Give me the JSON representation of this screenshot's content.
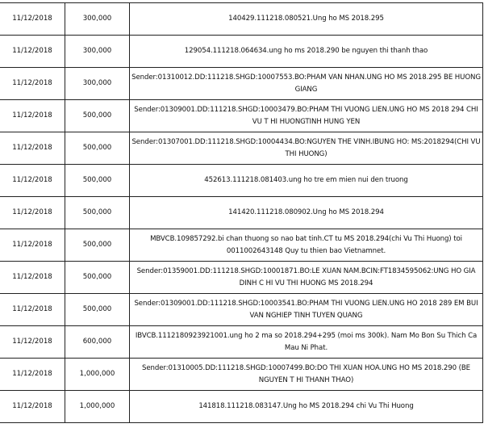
{
  "rows": [
    {
      "date": "11/12/2018",
      "amount": "300,000",
      "content": "140429.111218.080521.Ung ho MS 2018.295"
    },
    {
      "date": "11/12/2018",
      "amount": "300,000",
      "content": "129054.111218.064634.ung ho ms 2018.290 be nguyen thi thanh thao"
    },
    {
      "date": "11/12/2018",
      "amount": "300,000",
      "content": "Sender:01310012.DD:111218.SHGD:10007553.BO:PHAM VAN NHAN.UNG HO MS 2018.295 BE HUONG GIANG"
    },
    {
      "date": "11/12/2018",
      "amount": "500,000",
      "content": "Sender:01309001.DD:111218.SHGD:10003479.BO:PHAM THI VUONG LIEN.UNG HO MS 2018 294 CHI VU T HI HUONGTINH HUNG YEN"
    },
    {
      "date": "11/12/2018",
      "amount": "500,000",
      "content": "Sender:01307001.DD:111218.SHGD:10004434.BO:NGUYEN THE VINH.IBUNG HO: MS:2018294(CHI VU THI HUONG)"
    },
    {
      "date": "11/12/2018",
      "amount": "500,000",
      "content": "452613.111218.081403.ung ho tre em mien nui den truong"
    },
    {
      "date": "11/12/2018",
      "amount": "500,000",
      "content": "141420.111218.080902.Ung ho MS 2018.294"
    },
    {
      "date": "11/12/2018",
      "amount": "500,000",
      "content": "MBVCB.109857292.bi chan thuong so nao bat tinh.CT tu MS 2018.294(chi Vu Thi Huong) toi 0011002643148 Quy tu thien bao Vietnamnet."
    },
    {
      "date": "11/12/2018",
      "amount": "500,000",
      "content": "Sender:01359001.DD:111218.SHGD:10001871.BO:LE XUAN NAM.BCIN:FT1834595062:UNG HO GIA DINH C HI VU THI HUONG MS 2018.294"
    },
    {
      "date": "11/12/2018",
      "amount": "500,000",
      "content": "Sender:01309001.DD:111218.SHGD:10003541.BO:PHAM THI VUONG LIEN.UNG HO 2018 289 EM BUI VAN NGHIEP TINH TUYEN QUANG"
    },
    {
      "date": "11/12/2018",
      "amount": "600,000",
      "content": "IBVCB.1112180923921001.ung ho 2 ma so 2018.294+295 (moi ms 300k). Nam Mo Bon Su Thich Ca Mau Ni Phat."
    },
    {
      "date": "11/12/2018",
      "amount": "1,000,000",
      "content": "Sender:01310005.DD:111218.SHGD:10007499.BO:DO THI XUAN HOA.UNG HO MS 2018.290 (BE NGUYEN T HI THANH THAO)"
    },
    {
      "date": "11/12/2018",
      "amount": "1,000,000",
      "content": "141818.111218.083147.Ung ho MS 2018.294 chi Vu Thi Huong"
    }
  ]
}
